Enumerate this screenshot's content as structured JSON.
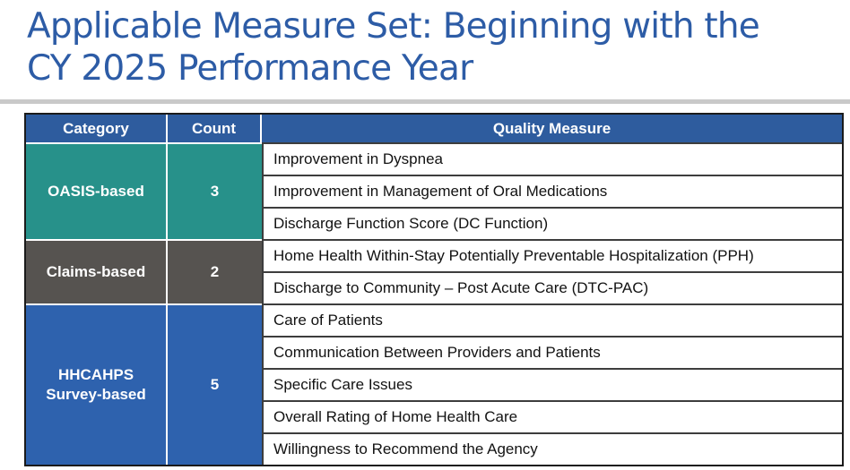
{
  "page": {
    "title_line1": "Applicable Measure Set: Beginning with the",
    "title_line2": "CY 2025 Performance Year"
  },
  "table": {
    "headers": [
      "Category",
      "Count",
      "Quality Measure"
    ],
    "groups": [
      {
        "category": "OASIS-based",
        "count": "3",
        "measures": [
          "Improvement in Dyspnea",
          "Improvement in Management of Oral Medications",
          "Discharge Function Score (DC Function)"
        ]
      },
      {
        "category": "Claims-based",
        "count": "2",
        "measures": [
          "Home Health Within-Stay Potentially Preventable Hospitalization (PPH)",
          "Discharge to Community – Post Acute Care (DTC-PAC)"
        ]
      },
      {
        "category": "HHCAHPS Survey-based",
        "count": "5",
        "measures": [
          "Care of Patients",
          "Communication Between Providers and Patients",
          "Specific Care Issues",
          "Overall Rating of Home Health Care",
          "Willingness to Recommend the Agency"
        ]
      }
    ]
  },
  "colors": {
    "title_text": "#2d5ca6",
    "header_bg": "#2e5c9e",
    "oasis_bg": "#27918a",
    "claims_bg": "#565350",
    "hhcahps_bg": "#2e62ae",
    "divider_rule": "#c9c9c9",
    "inner_border": "#3d3d3d",
    "outer_border": "#1b1b1b"
  }
}
